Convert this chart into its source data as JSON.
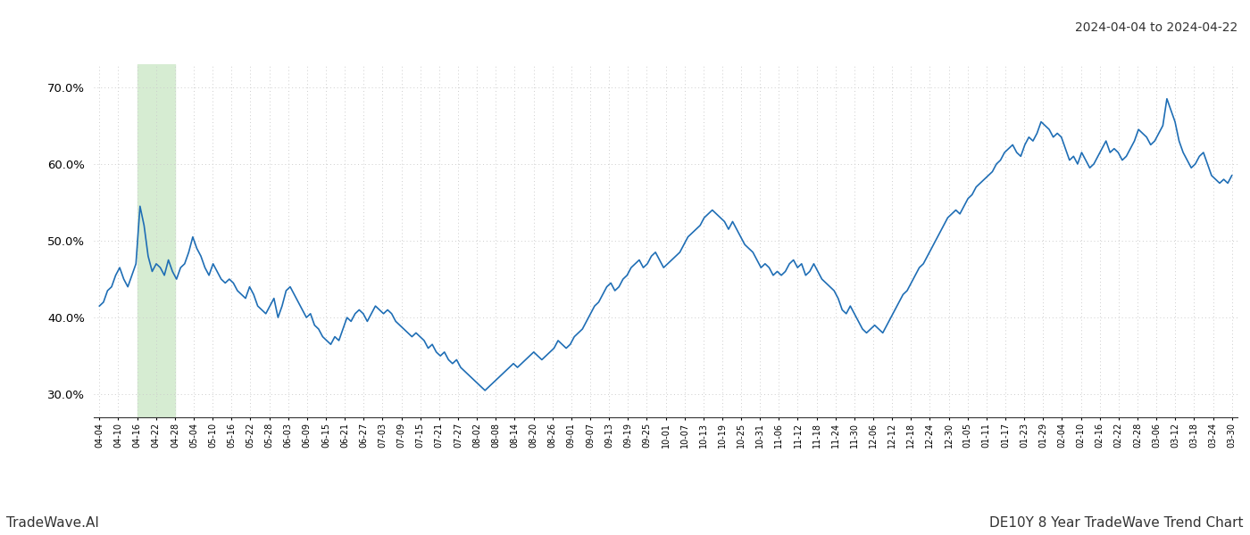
{
  "title_top_right": "2024-04-04 to 2024-04-22",
  "footer_left": "TradeWave.AI",
  "footer_right": "DE10Y 8 Year TradeWave Trend Chart",
  "line_color": "#1f6eb5",
  "line_width": 1.2,
  "background_color": "#ffffff",
  "grid_color": "#cccccc",
  "highlight_color": "#d6ecd2",
  "ylim": [
    27.0,
    73.0
  ],
  "yticks": [
    30.0,
    40.0,
    50.0,
    60.0,
    70.0
  ],
  "x_labels": [
    "04-04",
    "04-10",
    "04-16",
    "04-22",
    "04-28",
    "05-04",
    "05-10",
    "05-16",
    "05-22",
    "05-28",
    "06-03",
    "06-09",
    "06-15",
    "06-21",
    "06-27",
    "07-03",
    "07-09",
    "07-15",
    "07-21",
    "07-27",
    "08-02",
    "08-08",
    "08-14",
    "08-20",
    "08-26",
    "09-01",
    "09-07",
    "09-13",
    "09-19",
    "09-25",
    "10-01",
    "10-07",
    "10-13",
    "10-19",
    "10-25",
    "10-31",
    "11-06",
    "11-12",
    "11-18",
    "11-24",
    "11-30",
    "12-06",
    "12-12",
    "12-18",
    "12-24",
    "12-30",
    "01-05",
    "01-11",
    "01-17",
    "01-23",
    "01-29",
    "02-04",
    "02-10",
    "02-16",
    "02-22",
    "02-28",
    "03-06",
    "03-12",
    "03-18",
    "03-24",
    "03-30"
  ],
  "highlight_x_start_label": "04-16",
  "highlight_x_end_label": "04-28",
  "values": [
    41.5,
    42.0,
    43.5,
    44.0,
    45.5,
    46.5,
    45.0,
    44.0,
    45.5,
    47.0,
    54.5,
    52.0,
    48.0,
    46.0,
    47.0,
    46.5,
    45.5,
    47.5,
    46.0,
    45.0,
    46.5,
    47.0,
    48.5,
    50.5,
    49.0,
    48.0,
    46.5,
    45.5,
    47.0,
    46.0,
    45.0,
    44.5,
    45.0,
    44.5,
    43.5,
    43.0,
    42.5,
    44.0,
    43.0,
    41.5,
    41.0,
    40.5,
    41.5,
    42.5,
    40.0,
    41.5,
    43.5,
    44.0,
    43.0,
    42.0,
    41.0,
    40.0,
    40.5,
    39.0,
    38.5,
    37.5,
    37.0,
    36.5,
    37.5,
    37.0,
    38.5,
    40.0,
    39.5,
    40.5,
    41.0,
    40.5,
    39.5,
    40.5,
    41.5,
    41.0,
    40.5,
    41.0,
    40.5,
    39.5,
    39.0,
    38.5,
    38.0,
    37.5,
    38.0,
    37.5,
    37.0,
    36.0,
    36.5,
    35.5,
    35.0,
    35.5,
    34.5,
    34.0,
    34.5,
    33.5,
    33.0,
    32.5,
    32.0,
    31.5,
    31.0,
    30.5,
    31.0,
    31.5,
    32.0,
    32.5,
    33.0,
    33.5,
    34.0,
    33.5,
    34.0,
    34.5,
    35.0,
    35.5,
    35.0,
    34.5,
    35.0,
    35.5,
    36.0,
    37.0,
    36.5,
    36.0,
    36.5,
    37.5,
    38.0,
    38.5,
    39.5,
    40.5,
    41.5,
    42.0,
    43.0,
    44.0,
    44.5,
    43.5,
    44.0,
    45.0,
    45.5,
    46.5,
    47.0,
    47.5,
    46.5,
    47.0,
    48.0,
    48.5,
    47.5,
    46.5,
    47.0,
    47.5,
    48.0,
    48.5,
    49.5,
    50.5,
    51.0,
    51.5,
    52.0,
    53.0,
    53.5,
    54.0,
    53.5,
    53.0,
    52.5,
    51.5,
    52.5,
    51.5,
    50.5,
    49.5,
    49.0,
    48.5,
    47.5,
    46.5,
    47.0,
    46.5,
    45.5,
    46.0,
    45.5,
    46.0,
    47.0,
    47.5,
    46.5,
    47.0,
    45.5,
    46.0,
    47.0,
    46.0,
    45.0,
    44.5,
    44.0,
    43.5,
    42.5,
    41.0,
    40.5,
    41.5,
    40.5,
    39.5,
    38.5,
    38.0,
    38.5,
    39.0,
    38.5,
    38.0,
    39.0,
    40.0,
    41.0,
    42.0,
    43.0,
    43.5,
    44.5,
    45.5,
    46.5,
    47.0,
    48.0,
    49.0,
    50.0,
    51.0,
    52.0,
    53.0,
    53.5,
    54.0,
    53.5,
    54.5,
    55.5,
    56.0,
    57.0,
    57.5,
    58.0,
    58.5,
    59.0,
    60.0,
    60.5,
    61.5,
    62.0,
    62.5,
    61.5,
    61.0,
    62.5,
    63.5,
    63.0,
    64.0,
    65.5,
    65.0,
    64.5,
    63.5,
    64.0,
    63.5,
    62.0,
    60.5,
    61.0,
    60.0,
    61.5,
    60.5,
    59.5,
    60.0,
    61.0,
    62.0,
    63.0,
    61.5,
    62.0,
    61.5,
    60.5,
    61.0,
    62.0,
    63.0,
    64.5,
    64.0,
    63.5,
    62.5,
    63.0,
    64.0,
    65.0,
    68.5,
    67.0,
    65.5,
    63.0,
    61.5,
    60.5,
    59.5,
    60.0,
    61.0,
    61.5,
    60.0,
    58.5,
    58.0,
    57.5,
    58.0,
    57.5,
    58.5
  ]
}
